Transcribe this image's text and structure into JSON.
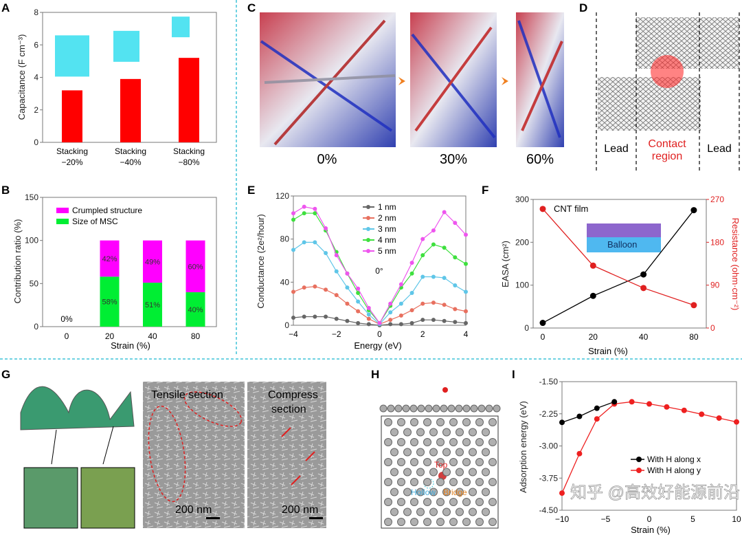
{
  "panels": {
    "A": "A",
    "B": "B",
    "C": "C",
    "D": "D",
    "E": "E",
    "F": "F",
    "G": "G",
    "H": "H",
    "I": "I"
  },
  "colors": {
    "separator": "#3fc4d8",
    "red": "#ff0000",
    "magenta": "#ff00ff",
    "green": "#00ee00"
  },
  "C": {
    "labels": [
      "0%",
      "30%",
      "60%"
    ]
  },
  "D": {
    "lead_left": "Lead",
    "contact": "Contact\nregion",
    "contact_line1": "Contact",
    "contact_line2": "region",
    "lead_right": "Lead"
  },
  "G": {
    "tensile": "Tensile section",
    "compress_line1": "Compress",
    "compress_line2": "section",
    "scale1": "200 nm",
    "scale2": "200 nm"
  },
  "H": {
    "top": "Top",
    "hollow": "Hollow",
    "bridge": "Bridge"
  },
  "F_inset": {
    "film": "CNT film",
    "balloon": "Balloon"
  },
  "watermark": "知乎 @高效好能源前沿",
  "chart_data": [
    {
      "panel": "A",
      "type": "bar",
      "ylabel": "Capacitance (F cm⁻³)",
      "categories": [
        "Stacking −20%",
        "Stacking −40%",
        "Stacking −80%"
      ],
      "cat_lines": [
        [
          "Stacking",
          "−20%"
        ],
        [
          "Stacking",
          "−40%"
        ],
        [
          "Stacking",
          "−80%"
        ]
      ],
      "values": [
        3.2,
        3.9,
        5.2
      ],
      "ylim": [
        0,
        8
      ],
      "yticks": [
        0,
        2,
        4,
        6,
        8
      ],
      "color": "#ff0000"
    },
    {
      "panel": "B",
      "type": "bar",
      "stacked": true,
      "xlabel": "Strain (%)",
      "ylabel": "Contribution ratio (%)",
      "categories": [
        "0",
        "20",
        "40",
        "80"
      ],
      "series": [
        {
          "name": "Size of MSC",
          "values": [
            0,
            58,
            51,
            40
          ],
          "color": "#00ee33",
          "labels": [
            "",
            "58%",
            "51%",
            "40%"
          ]
        },
        {
          "name": "Crumpled structure",
          "values": [
            0,
            42,
            49,
            60
          ],
          "color": "#ff00ff",
          "labels": [
            "",
            "42%",
            "49%",
            "60%"
          ]
        }
      ],
      "annotation": "0%",
      "ylim": [
        0,
        150
      ],
      "yticks": [
        0,
        50,
        100,
        150
      ],
      "legend": "top-left"
    },
    {
      "panel": "E",
      "type": "line",
      "xlabel": "Energy (eV)",
      "ylabel": "Conductance (2e²/hour)",
      "annotation": "0°",
      "xlim": [
        -4,
        4
      ],
      "ylim": [
        0,
        120
      ],
      "xticks": [
        -4,
        -2,
        0,
        2,
        4
      ],
      "yticks": [
        0,
        40,
        80,
        120
      ],
      "legend": "top-center",
      "x": [
        -4,
        -3.5,
        -3,
        -2.5,
        -2,
        -1.5,
        -1,
        -0.5,
        0,
        0.5,
        1,
        1.5,
        2,
        2.5,
        3,
        3.5,
        4
      ],
      "series": [
        {
          "name": "1 nm",
          "color": "#666666",
          "values": [
            7,
            8,
            8,
            8,
            6,
            4,
            2,
            1,
            0,
            1,
            1,
            2,
            5,
            5,
            4,
            3,
            2
          ]
        },
        {
          "name": "2 nm",
          "color": "#e8705f",
          "values": [
            31,
            35,
            36,
            33,
            28,
            20,
            13,
            6,
            1,
            5,
            9,
            14,
            20,
            21,
            19,
            15,
            13
          ]
        },
        {
          "name": "3 nm",
          "color": "#5fc6e8",
          "values": [
            70,
            77,
            77,
            67,
            50,
            35,
            22,
            10,
            1,
            12,
            20,
            30,
            45,
            45,
            44,
            37,
            31
          ]
        },
        {
          "name": "4 nm",
          "color": "#3ee03e",
          "values": [
            98,
            104,
            104,
            88,
            68,
            48,
            30,
            14,
            2,
            18,
            35,
            48,
            65,
            75,
            72,
            63,
            57
          ]
        },
        {
          "name": "5 nm",
          "color": "#ee55ee",
          "values": [
            104,
            110,
            108,
            90,
            65,
            48,
            34,
            16,
            2,
            20,
            38,
            58,
            80,
            88,
            105,
            95,
            84
          ]
        }
      ]
    },
    {
      "panel": "F",
      "type": "line",
      "xlabel": "Strain (%)",
      "ylabel": "EASA (cm²)",
      "ylabel_right": "Resistance (ohm·cm⁻²)",
      "categories": [
        "0",
        "20",
        "40",
        "80"
      ],
      "ylim": [
        0,
        300
      ],
      "yticks": [
        0,
        100,
        200,
        300
      ],
      "ylim_right": [
        0,
        270
      ],
      "yticks_right": [
        0,
        90,
        180,
        270
      ],
      "series": [
        {
          "axis": "left",
          "color": "#000000",
          "values": [
            12,
            75,
            125,
            275
          ]
        },
        {
          "axis": "right",
          "color": "#e02020",
          "values": [
            250,
            131,
            84,
            48
          ]
        }
      ]
    },
    {
      "panel": "I",
      "type": "line",
      "xlabel": "Strain (%)",
      "ylabel": "Adsorption energy (eV)",
      "xlim": [
        -10,
        10
      ],
      "ylim": [
        -4.5,
        -1.5
      ],
      "xticks": [
        -10,
        -5,
        0,
        5,
        10
      ],
      "yticks": [
        -1.5,
        -2.25,
        -3.0,
        -3.75,
        -4.5
      ],
      "ytick_labels": [
        "-1.50",
        "-2.25",
        "-3.00",
        "-3.75",
        "-4.50"
      ],
      "legend": "center-right",
      "series": [
        {
          "name": "With H along x",
          "color": "#000000",
          "x": [
            -10,
            -8,
            -6,
            -4
          ],
          "values": [
            -2.45,
            -2.31,
            -2.12,
            -1.97
          ]
        },
        {
          "name": "With H along y",
          "color": "#ee2020",
          "x": [
            -10,
            -8,
            -6,
            -4,
            -2,
            0,
            2,
            4,
            6,
            8,
            10
          ],
          "values": [
            -4.1,
            -3.18,
            -2.37,
            -2.02,
            -1.97,
            -2.02,
            -2.09,
            -2.17,
            -2.26,
            -2.35,
            -2.44
          ]
        }
      ]
    }
  ]
}
